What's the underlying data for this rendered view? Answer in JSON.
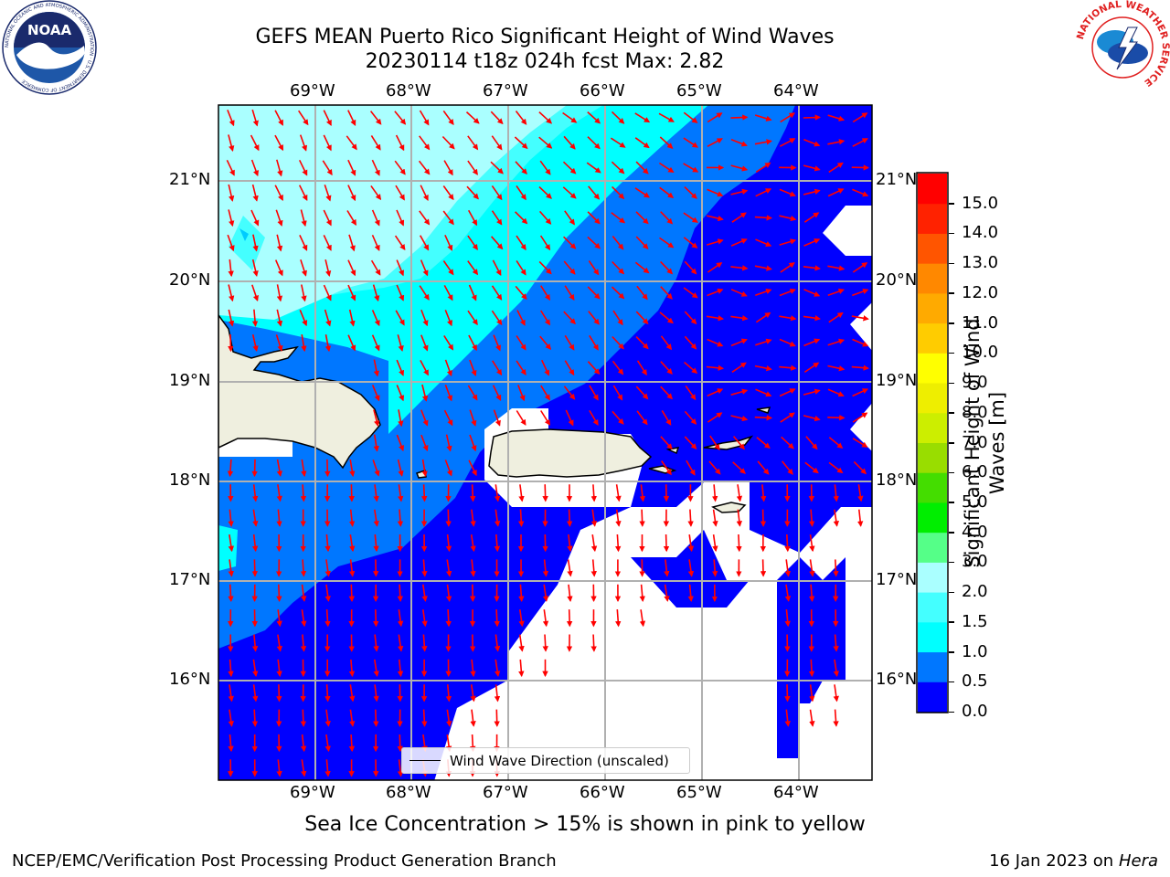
{
  "title": {
    "line1": "GEFS MEAN Puerto Rico Significant Height of Wind Waves",
    "line2": "20230114 t18z 024h fcst   Max: 2.82"
  },
  "map": {
    "lon_range": [
      -70.0,
      -63.25
    ],
    "lat_range": [
      15.0,
      21.75
    ],
    "lon_ticks": [
      "69°W",
      "68°W",
      "67°W",
      "66°W",
      "65°W",
      "64°W"
    ],
    "lat_ticks": [
      "21°N",
      "20°N",
      "19°N",
      "18°N",
      "17°N",
      "16°N"
    ],
    "gridlines": true,
    "ocean_colors": {
      "lt_0_5": "#0000ff",
      "0_5_1_0": "#0077ff",
      "1_0_1_5": "#00ffff",
      "1_5_2_0": "#44ffff",
      "2_0_3_0": "#aaffff"
    },
    "land_color": "#efefdf",
    "arrow_color": "#ff0000",
    "ice_note_blank": "#ffffff"
  },
  "legend": {
    "label": "Wind Wave Direction (unscaled)"
  },
  "colorbar": {
    "label": "Significant Height of Wind Waves [m]",
    "label_line1": "Significant Height of Wind",
    "label_line2": "Waves [m]",
    "ticks": [
      "0.0",
      "0.5",
      "1.0",
      "1.5",
      "2.0",
      "3.0",
      "4.0",
      "5.0",
      "6.0",
      "7.0",
      "8.0",
      "9.0",
      "10.0",
      "11.0",
      "12.0",
      "13.0",
      "14.0",
      "15.0"
    ],
    "colors": [
      "#0000ff",
      "#0077ff",
      "#00ffff",
      "#44ffff",
      "#aaffff",
      "#55ff88",
      "#00ee00",
      "#44dd00",
      "#99dd00",
      "#ccee00",
      "#eeee00",
      "#ffff00",
      "#ffcc00",
      "#ffaa00",
      "#ff8800",
      "#ff5500",
      "#ff2200",
      "#ff0000"
    ]
  },
  "caption": "Sea Ice Concentration > 15% is shown in pink to yellow",
  "footer": {
    "left": "NCEP/EMC/Verification Post Processing Product Generation Branch",
    "date": "16 Jan 2023 on ",
    "host": "Hera"
  },
  "logos": {
    "noaa": {
      "text": "NOAA",
      "ring_text": "NATIONAL OCEANIC AND ATMOSPHERIC ADMINISTRATION · U.S. DEPARTMENT OF COMMERCE"
    },
    "nws": {
      "ring_text": "NATIONAL WEATHER SERVICE"
    }
  }
}
